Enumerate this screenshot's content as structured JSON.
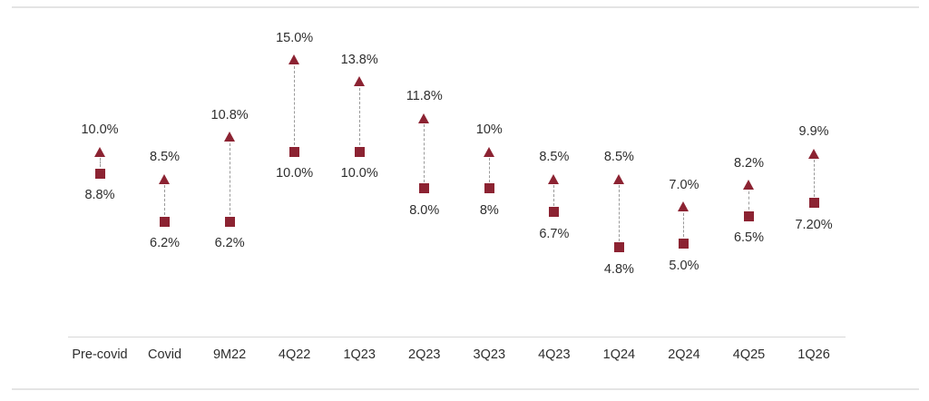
{
  "theme": {
    "marker_color": "#8C2332",
    "connector_color": "#9A9A9A",
    "label_color": "#2E2E2E",
    "axis_line_color": "#D8D8D8",
    "divider_color": "#E4E4E4",
    "background": "#FFFFFF"
  },
  "chart_data": {
    "type": "range-dumbbell",
    "title": "",
    "xlabel": "",
    "ylabel": "",
    "unit": "%",
    "grid": false,
    "legend_position": "none",
    "ylim": [
      0,
      16
    ],
    "categories": [
      "Pre-covid",
      "Covid",
      "9M22",
      "4Q22",
      "1Q23",
      "2Q23",
      "3Q23",
      "4Q23",
      "1Q24",
      "2Q24",
      "4Q25",
      "1Q26"
    ],
    "series": [
      {
        "name": "upper",
        "marker": "triangle-up",
        "values": [
          10.0,
          8.5,
          10.8,
          15.0,
          13.8,
          11.8,
          10,
          8.5,
          8.5,
          7.0,
          8.2,
          9.9
        ],
        "labels": [
          "10.0%",
          "8.5%",
          "10.8%",
          "15.0%",
          "13.8%",
          "11.8%",
          "10%",
          "8.5%",
          "8.5%",
          "7.0%",
          "8.2%",
          "9.9%"
        ]
      },
      {
        "name": "lower",
        "marker": "square",
        "values": [
          8.8,
          6.2,
          6.2,
          10.0,
          10.0,
          8.0,
          8,
          6.7,
          4.8,
          5.0,
          6.5,
          7.2
        ],
        "labels": [
          "8.8%",
          "6.2%",
          "6.2%",
          "10.0%",
          "10.0%",
          "8.0%",
          "8%",
          "6.7%",
          "4.8%",
          "5.0%",
          "6.5%",
          "7.20%"
        ]
      }
    ]
  }
}
